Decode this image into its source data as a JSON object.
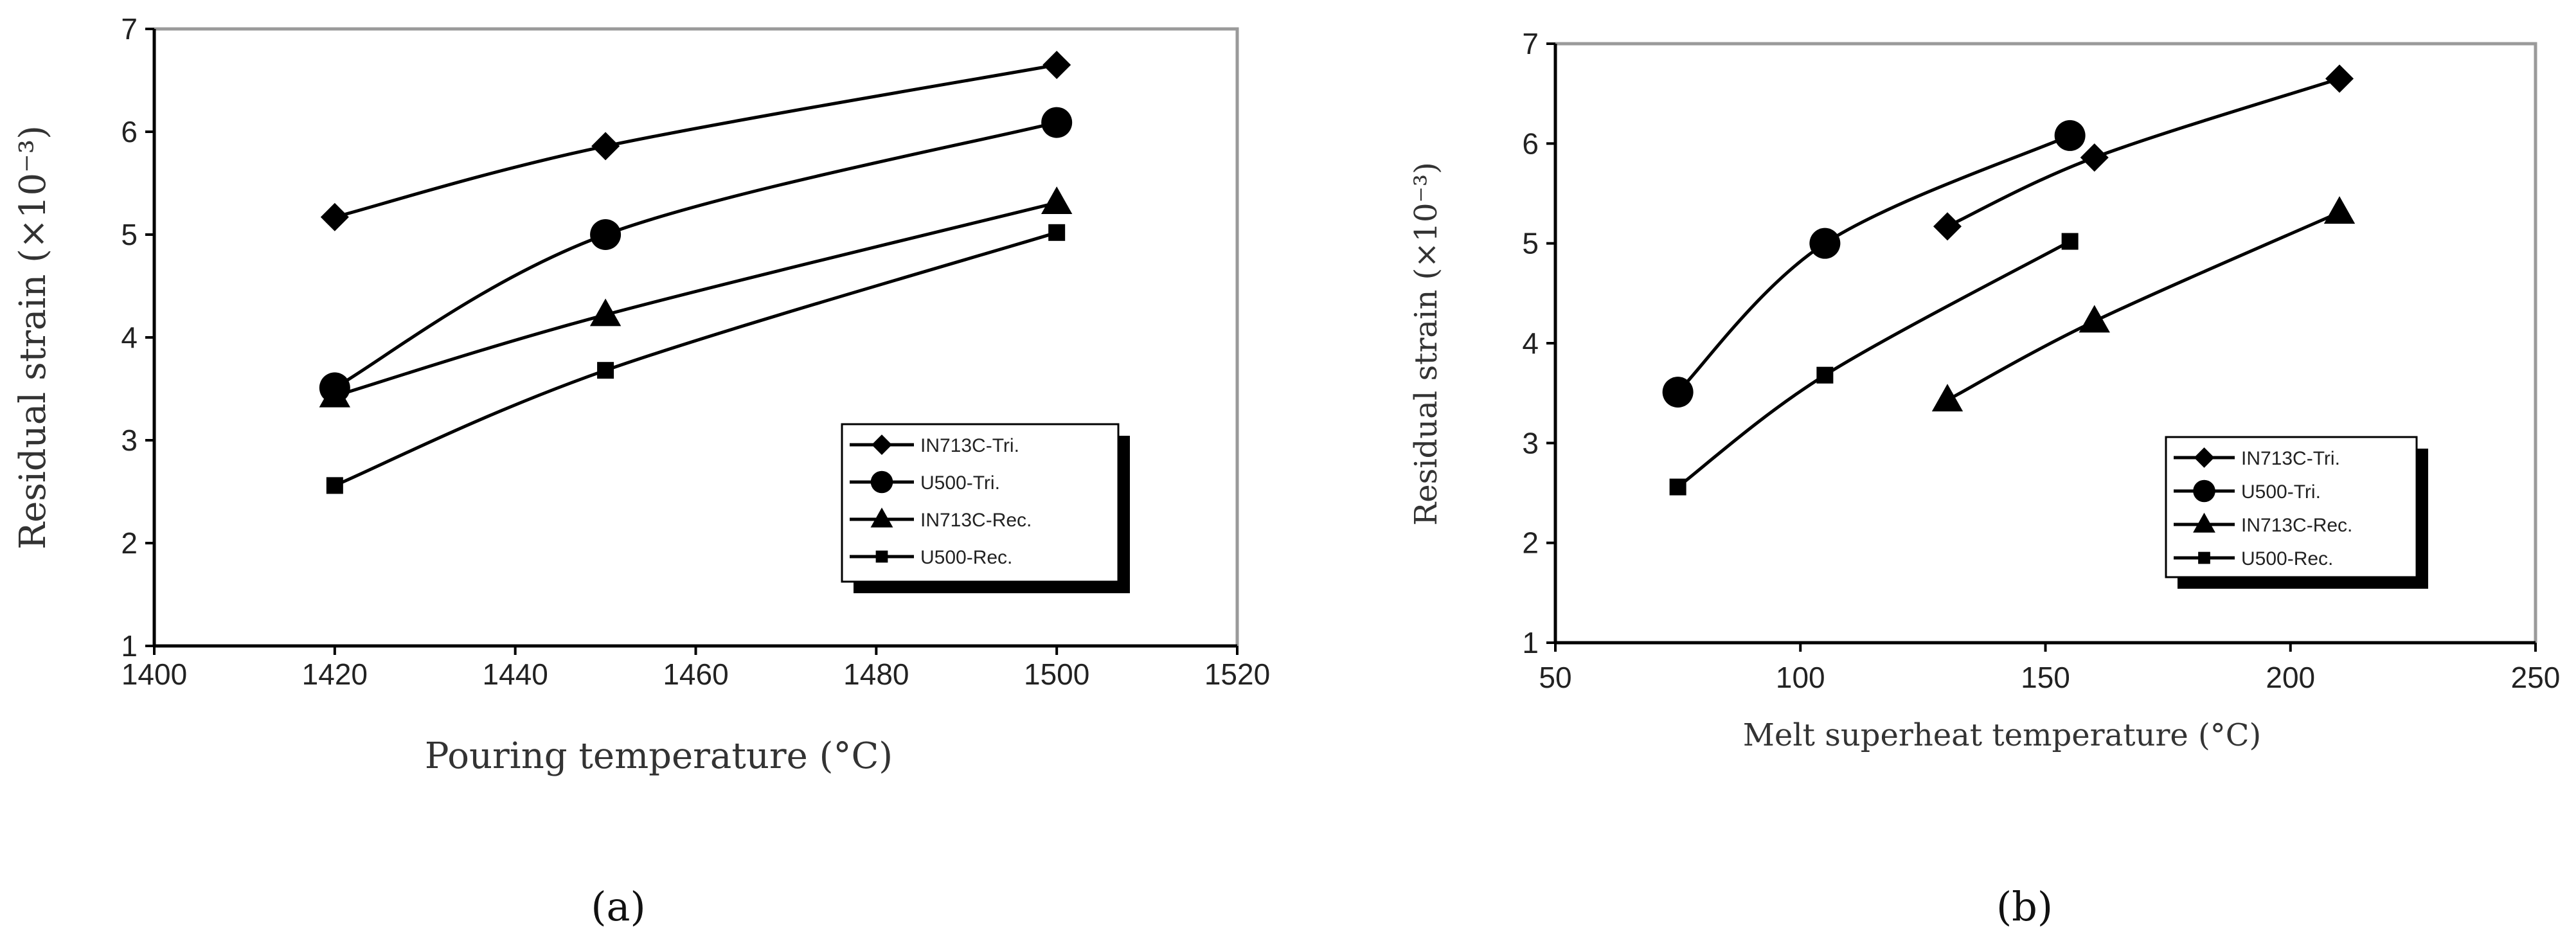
{
  "chart_data": [
    {
      "type": "line",
      "caption": "(a)",
      "xlabel": "Pouring temperature (°C)",
      "ylabel": "Residual strain (×10⁻³)",
      "xlim": [
        1400,
        1520
      ],
      "ylim": [
        1,
        7
      ],
      "xticks": [
        1400,
        1420,
        1440,
        1460,
        1480,
        1500,
        1520
      ],
      "yticks": [
        1,
        2,
        3,
        4,
        5,
        6,
        7
      ],
      "grid": false,
      "legend_position": "bottom-right",
      "series": [
        {
          "name": "IN713C-Tri.",
          "marker": "diamond",
          "x": [
            1420,
            1450,
            1500
          ],
          "values": [
            5.17,
            5.86,
            6.65
          ]
        },
        {
          "name": "U500-Tri.",
          "marker": "circle",
          "x": [
            1420,
            1450,
            1500
          ],
          "values": [
            3.51,
            5.0,
            6.09
          ]
        },
        {
          "name": "IN713C-Rec.",
          "marker": "triangle",
          "x": [
            1420,
            1450,
            1500
          ],
          "values": [
            3.43,
            4.22,
            5.31
          ]
        },
        {
          "name": "U500-Rec.",
          "marker": "square",
          "x": [
            1420,
            1450,
            1500
          ],
          "values": [
            2.56,
            3.68,
            5.02
          ]
        }
      ]
    },
    {
      "type": "line",
      "caption": "(b)",
      "xlabel": "Melt superheat temperature (°C)",
      "ylabel": "Residual strain (×10⁻³)",
      "xlim": [
        50,
        250
      ],
      "ylim": [
        1,
        7
      ],
      "xticks": [
        50,
        100,
        150,
        200,
        250
      ],
      "yticks": [
        1,
        2,
        3,
        4,
        5,
        6,
        7
      ],
      "grid": false,
      "legend_position": "bottom-right",
      "series": [
        {
          "name": "IN713C-Tri.",
          "marker": "diamond",
          "x": [
            130,
            160,
            210
          ],
          "values": [
            5.17,
            5.86,
            6.65
          ]
        },
        {
          "name": "U500-Tri.",
          "marker": "circle",
          "x": [
            75,
            105,
            155
          ],
          "values": [
            3.51,
            5.0,
            6.08
          ]
        },
        {
          "name": "IN713C-Rec.",
          "marker": "triangle",
          "x": [
            130,
            160,
            210
          ],
          "values": [
            3.43,
            4.22,
            5.31
          ]
        },
        {
          "name": "U500-Rec.",
          "marker": "square",
          "x": [
            75,
            105,
            155
          ],
          "values": [
            2.56,
            3.68,
            5.02
          ]
        }
      ]
    }
  ]
}
